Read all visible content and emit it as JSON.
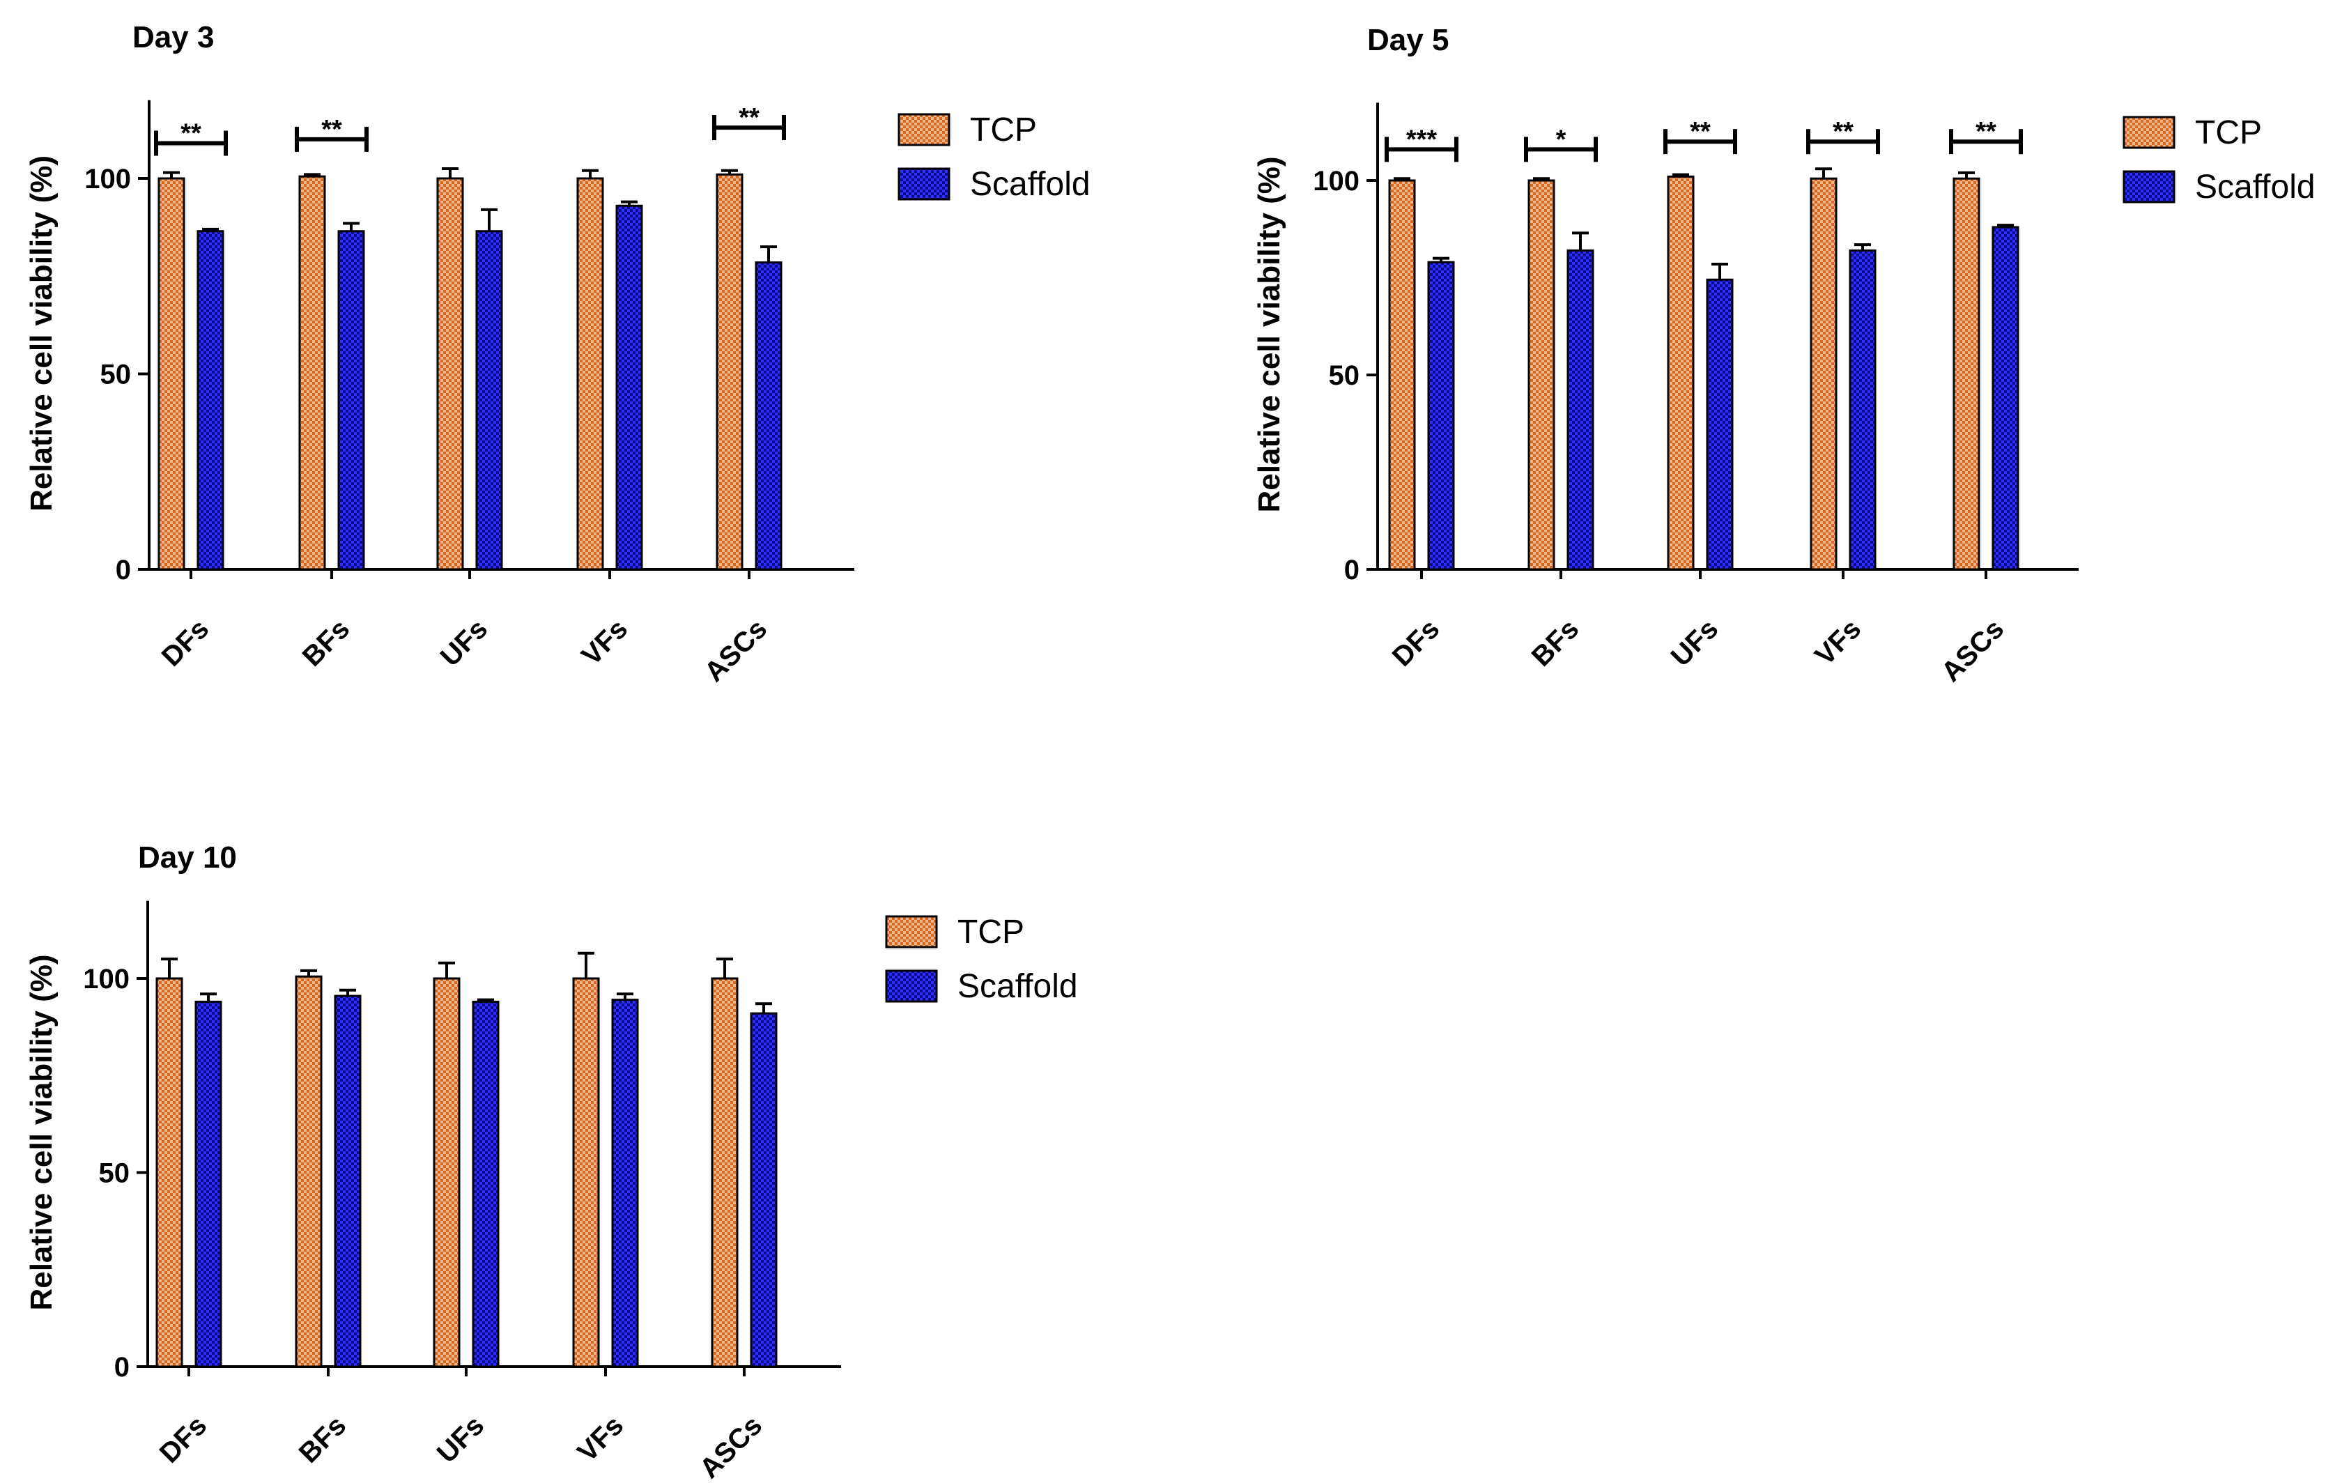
{
  "colors": {
    "tcp_fill": "#d2691e",
    "tcp_checker": "#f2b48a",
    "scaffold_fill": "#0a0a8c",
    "scaffold_checker": "#2f2fff",
    "axis": "#000000",
    "background": "#ffffff"
  },
  "chart_data": [
    {
      "type": "bar",
      "title": "Day 3",
      "ylabel": "Relative cell viability (%)",
      "xlabel": "",
      "ylim": [
        0,
        120
      ],
      "yticks": [
        0,
        50,
        100
      ],
      "categories": [
        "DFs",
        "BFs",
        "UFs",
        "VFs",
        "ASCs"
      ],
      "legend": [
        "TCP",
        "Scaffold"
      ],
      "series": [
        {
          "name": "TCP",
          "values": [
            100,
            100.5,
            100,
            100,
            101
          ],
          "errors": [
            1.5,
            0.5,
            2.5,
            2,
            1
          ]
        },
        {
          "name": "Scaffold",
          "values": [
            86.5,
            86.5,
            86.5,
            93,
            78.5
          ],
          "errors": [
            0.5,
            2,
            5.5,
            1,
            4
          ]
        }
      ],
      "significance": [
        {
          "category": "DFs",
          "label": "**",
          "level": 109
        },
        {
          "category": "BFs",
          "label": "**",
          "level": 110
        },
        {
          "category": "ASCs",
          "label": "**",
          "level": 113
        }
      ]
    },
    {
      "type": "bar",
      "title": "Day 5",
      "ylabel": "Relative cell viability (%)",
      "xlabel": "",
      "ylim": [
        0,
        120
      ],
      "yticks": [
        0,
        50,
        100
      ],
      "categories": [
        "DFs",
        "BFs",
        "UFs",
        "VFs",
        "ASCs"
      ],
      "legend": [
        "TCP",
        "Scaffold"
      ],
      "series": [
        {
          "name": "TCP",
          "values": [
            100,
            100,
            101,
            100.5,
            100.5
          ],
          "errors": [
            0.5,
            0.5,
            0.5,
            2.5,
            1.5
          ]
        },
        {
          "name": "Scaffold",
          "values": [
            79,
            82,
            74.5,
            82,
            88
          ],
          "errors": [
            1,
            4.5,
            4,
            1.5,
            0.5
          ]
        }
      ],
      "significance": [
        {
          "category": "DFs",
          "label": "***",
          "level": 108
        },
        {
          "category": "BFs",
          "label": "*",
          "level": 108
        },
        {
          "category": "UFs",
          "label": "**",
          "level": 110
        },
        {
          "category": "VFs",
          "label": "**",
          "level": 110
        },
        {
          "category": "ASCs",
          "label": "**",
          "level": 110
        }
      ]
    },
    {
      "type": "bar",
      "title": "Day 10",
      "ylabel": "Relative cell viability (%)",
      "xlabel": "",
      "ylim": [
        0,
        120
      ],
      "yticks": [
        0,
        50,
        100
      ],
      "categories": [
        "DFs",
        "BFs",
        "UFs",
        "VFs",
        "ASCs"
      ],
      "legend": [
        "TCP",
        "Scaffold"
      ],
      "series": [
        {
          "name": "TCP",
          "values": [
            100,
            100.5,
            100,
            100,
            100
          ],
          "errors": [
            5,
            1.5,
            4,
            6.5,
            5
          ]
        },
        {
          "name": "Scaffold",
          "values": [
            94,
            95.5,
            94,
            94.5,
            91
          ],
          "errors": [
            2,
            1.5,
            0.5,
            1.5,
            2.5
          ]
        }
      ],
      "significance": []
    }
  ]
}
